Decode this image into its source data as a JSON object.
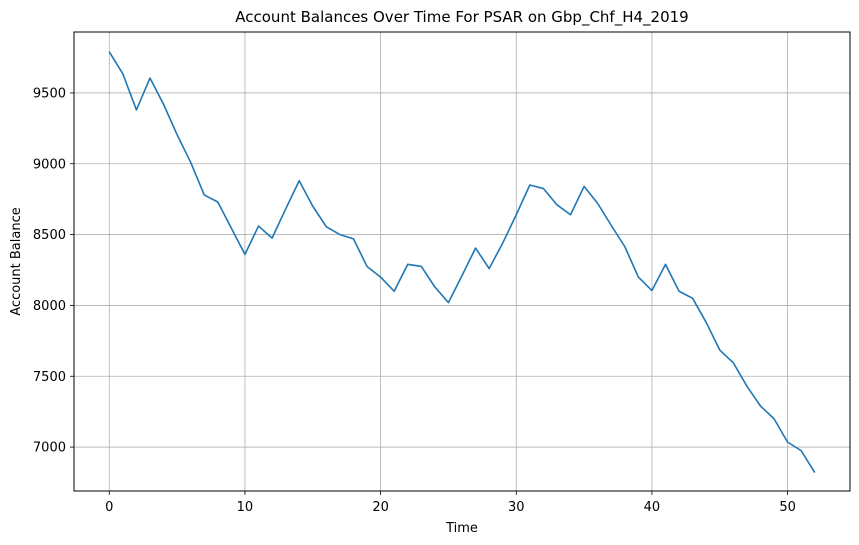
{
  "chart_data": {
    "type": "line",
    "title": "Account Balances Over Time For PSAR on Gbp_Chf_H4_2019",
    "xlabel": "Time",
    "ylabel": "Account Balance",
    "grid": true,
    "xlim": [
      -2.6,
      54.6
    ],
    "ylim": [
      6690,
      9930
    ],
    "xticks": [
      0,
      10,
      20,
      30,
      40,
      50
    ],
    "yticks": [
      7000,
      7500,
      8000,
      8500,
      9000,
      9500
    ],
    "series": [
      {
        "color": "#1f77b4",
        "x": [
          0,
          1,
          2,
          3,
          4,
          5,
          6,
          7,
          8,
          9,
          10,
          11,
          12,
          13,
          14,
          15,
          16,
          17,
          18,
          19,
          20,
          21,
          22,
          23,
          24,
          25,
          26,
          27,
          28,
          29,
          30,
          31,
          32,
          33,
          34,
          35,
          36,
          37,
          38,
          39,
          40,
          41,
          42,
          43,
          44,
          45,
          46,
          47,
          48,
          49,
          50,
          51,
          52
        ],
        "y": [
          9790,
          9635,
          9380,
          9605,
          9420,
          9205,
          9010,
          8780,
          8730,
          8545,
          8360,
          8560,
          8475,
          8680,
          8880,
          8700,
          8555,
          8500,
          8470,
          8275,
          8200,
          8100,
          8290,
          8275,
          8130,
          8020,
          8210,
          8405,
          8260,
          8440,
          8640,
          8850,
          8825,
          8710,
          8640,
          8840,
          8720,
          8565,
          8415,
          8200,
          8105,
          8290,
          8100,
          8050,
          7880,
          7685,
          7595,
          7430,
          7290,
          7200,
          7035,
          6975,
          6820
        ]
      }
    ]
  }
}
